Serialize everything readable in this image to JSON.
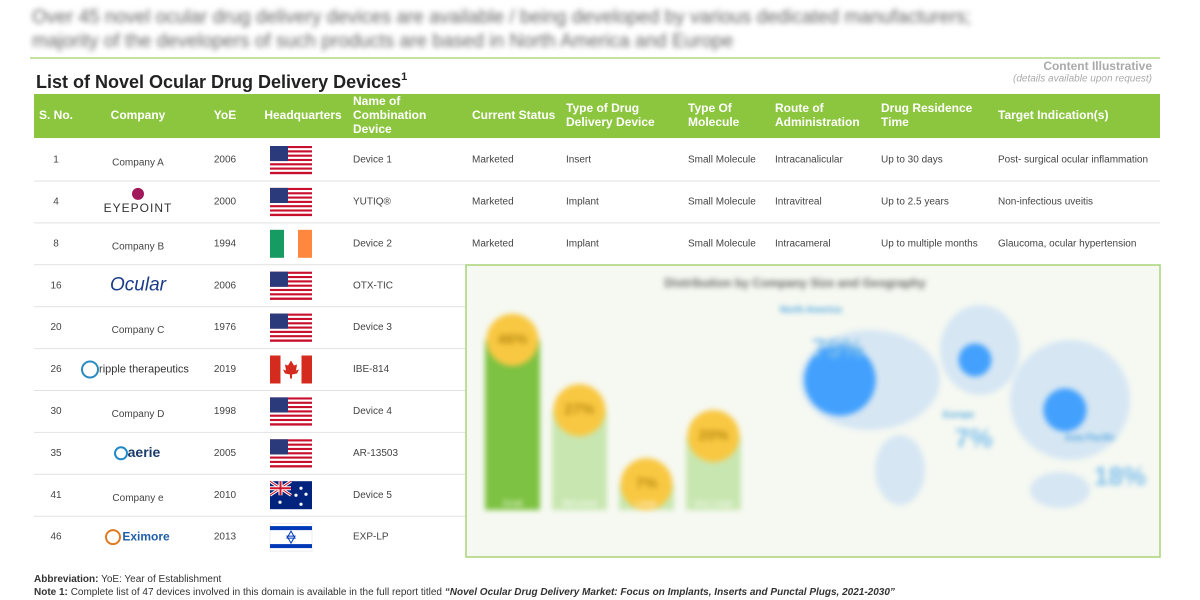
{
  "header": {
    "blurb": [
      "Over 45 novel ocular drug delivery devices are available / being developed by various dedicated manufacturers;",
      "majority of the developers of such products are based in North America and Europe"
    ],
    "title": "List of Novel Ocular Drug Delivery Devices",
    "title_note": "1",
    "watermark": "Content Illustrative",
    "watermark_sub": "(details available upon request)"
  },
  "table": {
    "columns": [
      [
        "S. No."
      ],
      [
        "Company"
      ],
      [
        "YoE"
      ],
      [
        "Headquarters"
      ],
      [
        "Name of",
        "Combination",
        "Device"
      ],
      [
        "Current Status"
      ],
      [
        "Type of Drug",
        "Delivery Device"
      ],
      [
        "Type Of",
        "Molecule"
      ],
      [
        "Route of",
        "Administration"
      ],
      [
        "Drug Residence",
        "Time"
      ],
      [
        "Target Indication(s)"
      ]
    ],
    "rows": [
      [
        "1",
        "Company A",
        "2006",
        "Device 1",
        "Marketed",
        "Insert",
        "Small Molecule",
        "Intracanalicular",
        "Up to 30 days",
        "Post- surgical ocular inflammation"
      ],
      [
        "4",
        "EYEPOINT",
        "2000",
        "YUTIQ®",
        "Marketed",
        "Implant",
        "Small Molecule",
        "Intravitreal",
        "Up to 2.5 years",
        "Non-infectious uveitis"
      ],
      [
        "8",
        "Company B",
        "1994",
        "Device 2",
        "Marketed",
        "Implant",
        "Small Molecule",
        "Intracameral",
        "Up to multiple months",
        "Glaucoma, ocular hypertension"
      ],
      [
        "16",
        "Ocular",
        "2006",
        "OTX-TIC"
      ],
      [
        "20",
        "Company C",
        "1976",
        "Device 3"
      ],
      [
        "26",
        "ripple therapeutics",
        "2019",
        "IBE-814"
      ],
      [
        "30",
        "Company D",
        "1998",
        "Device 4"
      ],
      [
        "35",
        "aerie",
        "2005",
        "AR-13503"
      ],
      [
        "41",
        "Company e",
        "2010",
        "Device 5"
      ],
      [
        "46",
        "Eximore",
        "2013",
        "EXP-LP"
      ]
    ]
  },
  "inset": {
    "type": "bar",
    "title": "Distribution by Company Size and Geography",
    "categories": [
      "Small",
      "Mid-sized",
      "Large",
      "Very Large"
    ],
    "values": [
      46,
      27,
      7,
      20
    ],
    "value_labels": [
      "46%",
      "27%",
      "7%",
      "20%"
    ],
    "regions": [
      {
        "name": "North America",
        "value": 75,
        "label": "75%"
      },
      {
        "name": "Europe",
        "value": 7,
        "label": "7%"
      },
      {
        "name": "Asia Pacific",
        "value": 18,
        "label": "18%"
      }
    ]
  },
  "footer": {
    "abbr_label": "Abbreviation:",
    "abbr": "YoE: Year of Establishment",
    "note_label": "Note 1:",
    "note": "Complete list of 47 devices involved in this domain is available in the full report titled",
    "report": "“Novel Ocular Drug Delivery Market: Focus on Implants, Inserts and Punctal Plugs, 2021-2030”"
  }
}
